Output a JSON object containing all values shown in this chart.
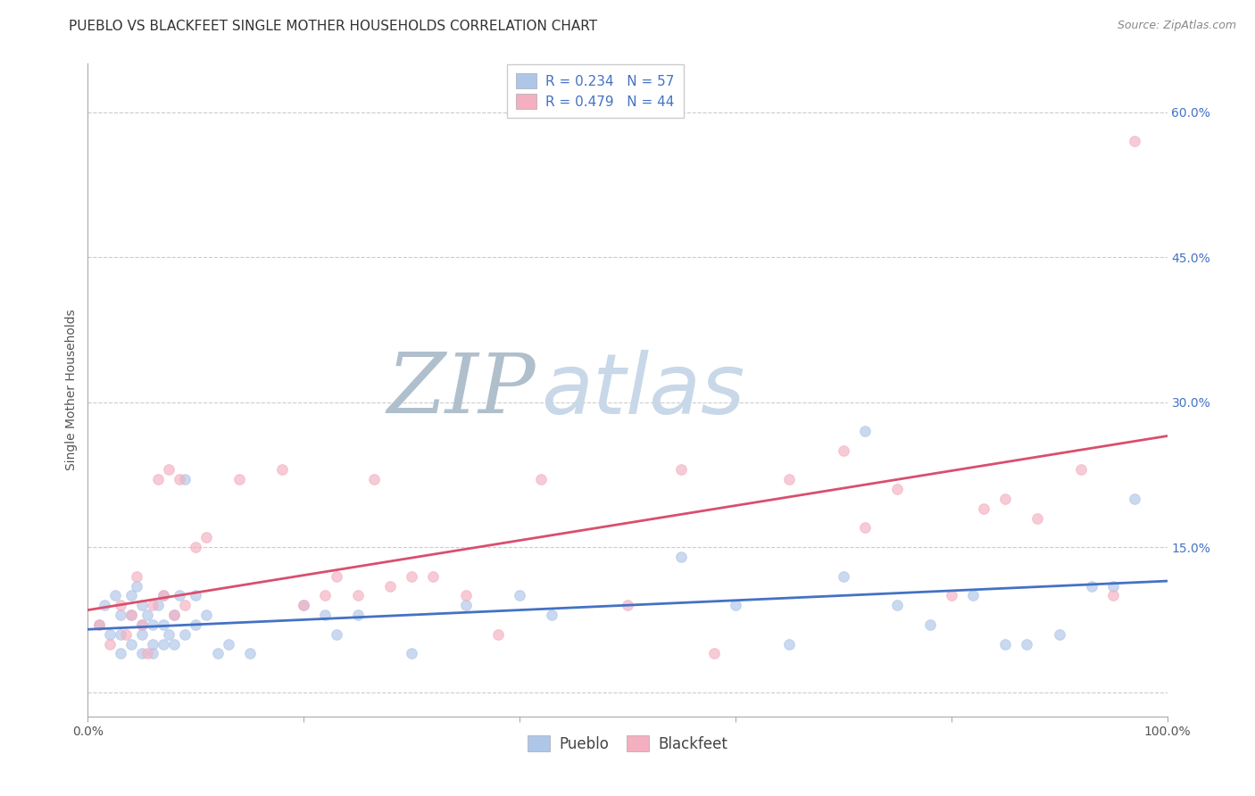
{
  "title": "PUEBLO VS BLACKFEET SINGLE MOTHER HOUSEHOLDS CORRELATION CHART",
  "source": "Source: ZipAtlas.com",
  "ylabel": "Single Mother Households",
  "pueblo_R": 0.234,
  "pueblo_N": 57,
  "blackfeet_R": 0.479,
  "blackfeet_N": 44,
  "pueblo_color": "#aec6e8",
  "blackfeet_color": "#f4afc0",
  "pueblo_line_color": "#4472c4",
  "blackfeet_line_color": "#d94f6e",
  "background_color": "#ffffff",
  "grid_color": "#cccccc",
  "watermark_ZIP": "ZIP",
  "watermark_atlas": "atlas",
  "watermark_ZIP_color": "#c8d4e0",
  "watermark_atlas_color": "#c8d4e0",
  "xlim": [
    0.0,
    1.0
  ],
  "ylim": [
    -0.025,
    0.65
  ],
  "xtick_vals": [
    0.0,
    0.2,
    0.4,
    0.6,
    0.8,
    1.0
  ],
  "xticklabels": [
    "0.0%",
    "",
    "",
    "",
    "",
    "100.0%"
  ],
  "ytick_right_vals": [
    0.0,
    0.15,
    0.3,
    0.45,
    0.6
  ],
  "ytick_right_labels": [
    "",
    "15.0%",
    "30.0%",
    "45.0%",
    "60.0%"
  ],
  "pueblo_scatter_x": [
    0.01,
    0.015,
    0.02,
    0.025,
    0.03,
    0.03,
    0.03,
    0.04,
    0.04,
    0.04,
    0.045,
    0.05,
    0.05,
    0.05,
    0.05,
    0.055,
    0.06,
    0.06,
    0.06,
    0.065,
    0.07,
    0.07,
    0.07,
    0.075,
    0.08,
    0.08,
    0.085,
    0.09,
    0.09,
    0.1,
    0.1,
    0.11,
    0.12,
    0.13,
    0.15,
    0.2,
    0.22,
    0.23,
    0.25,
    0.3,
    0.35,
    0.4,
    0.43,
    0.55,
    0.6,
    0.65,
    0.7,
    0.72,
    0.75,
    0.78,
    0.82,
    0.85,
    0.87,
    0.9,
    0.93,
    0.95,
    0.97
  ],
  "pueblo_scatter_y": [
    0.07,
    0.09,
    0.06,
    0.1,
    0.06,
    0.08,
    0.04,
    0.05,
    0.08,
    0.1,
    0.11,
    0.04,
    0.06,
    0.07,
    0.09,
    0.08,
    0.04,
    0.05,
    0.07,
    0.09,
    0.05,
    0.07,
    0.1,
    0.06,
    0.05,
    0.08,
    0.1,
    0.06,
    0.22,
    0.07,
    0.1,
    0.08,
    0.04,
    0.05,
    0.04,
    0.09,
    0.08,
    0.06,
    0.08,
    0.04,
    0.09,
    0.1,
    0.08,
    0.14,
    0.09,
    0.05,
    0.12,
    0.27,
    0.09,
    0.07,
    0.1,
    0.05,
    0.05,
    0.06,
    0.11,
    0.11,
    0.2
  ],
  "blackfeet_scatter_x": [
    0.01,
    0.02,
    0.03,
    0.035,
    0.04,
    0.045,
    0.05,
    0.055,
    0.06,
    0.065,
    0.07,
    0.075,
    0.08,
    0.085,
    0.09,
    0.1,
    0.11,
    0.14,
    0.18,
    0.2,
    0.22,
    0.23,
    0.25,
    0.265,
    0.28,
    0.3,
    0.32,
    0.35,
    0.38,
    0.42,
    0.5,
    0.55,
    0.58,
    0.65,
    0.7,
    0.72,
    0.75,
    0.8,
    0.83,
    0.85,
    0.88,
    0.92,
    0.95,
    0.97
  ],
  "blackfeet_scatter_y": [
    0.07,
    0.05,
    0.09,
    0.06,
    0.08,
    0.12,
    0.07,
    0.04,
    0.09,
    0.22,
    0.1,
    0.23,
    0.08,
    0.22,
    0.09,
    0.15,
    0.16,
    0.22,
    0.23,
    0.09,
    0.1,
    0.12,
    0.1,
    0.22,
    0.11,
    0.12,
    0.12,
    0.1,
    0.06,
    0.22,
    0.09,
    0.23,
    0.04,
    0.22,
    0.25,
    0.17,
    0.21,
    0.1,
    0.19,
    0.2,
    0.18,
    0.23,
    0.1,
    0.57
  ],
  "pueblo_trend_x0": 0.0,
  "pueblo_trend_x1": 1.0,
  "pueblo_trend_y0": 0.065,
  "pueblo_trend_y1": 0.115,
  "blackfeet_trend_x0": 0.0,
  "blackfeet_trend_x1": 1.0,
  "blackfeet_trend_y0": 0.085,
  "blackfeet_trend_y1": 0.265,
  "legend_pueblo_label": "Pueblo",
  "legend_blackfeet_label": "Blackfeet",
  "title_fontsize": 11,
  "source_fontsize": 9,
  "axis_label_fontsize": 10,
  "tick_fontsize": 10,
  "legend_fontsize": 11,
  "marker_size": 70,
  "marker_alpha": 0.65,
  "marker_linewidth": 0.8
}
